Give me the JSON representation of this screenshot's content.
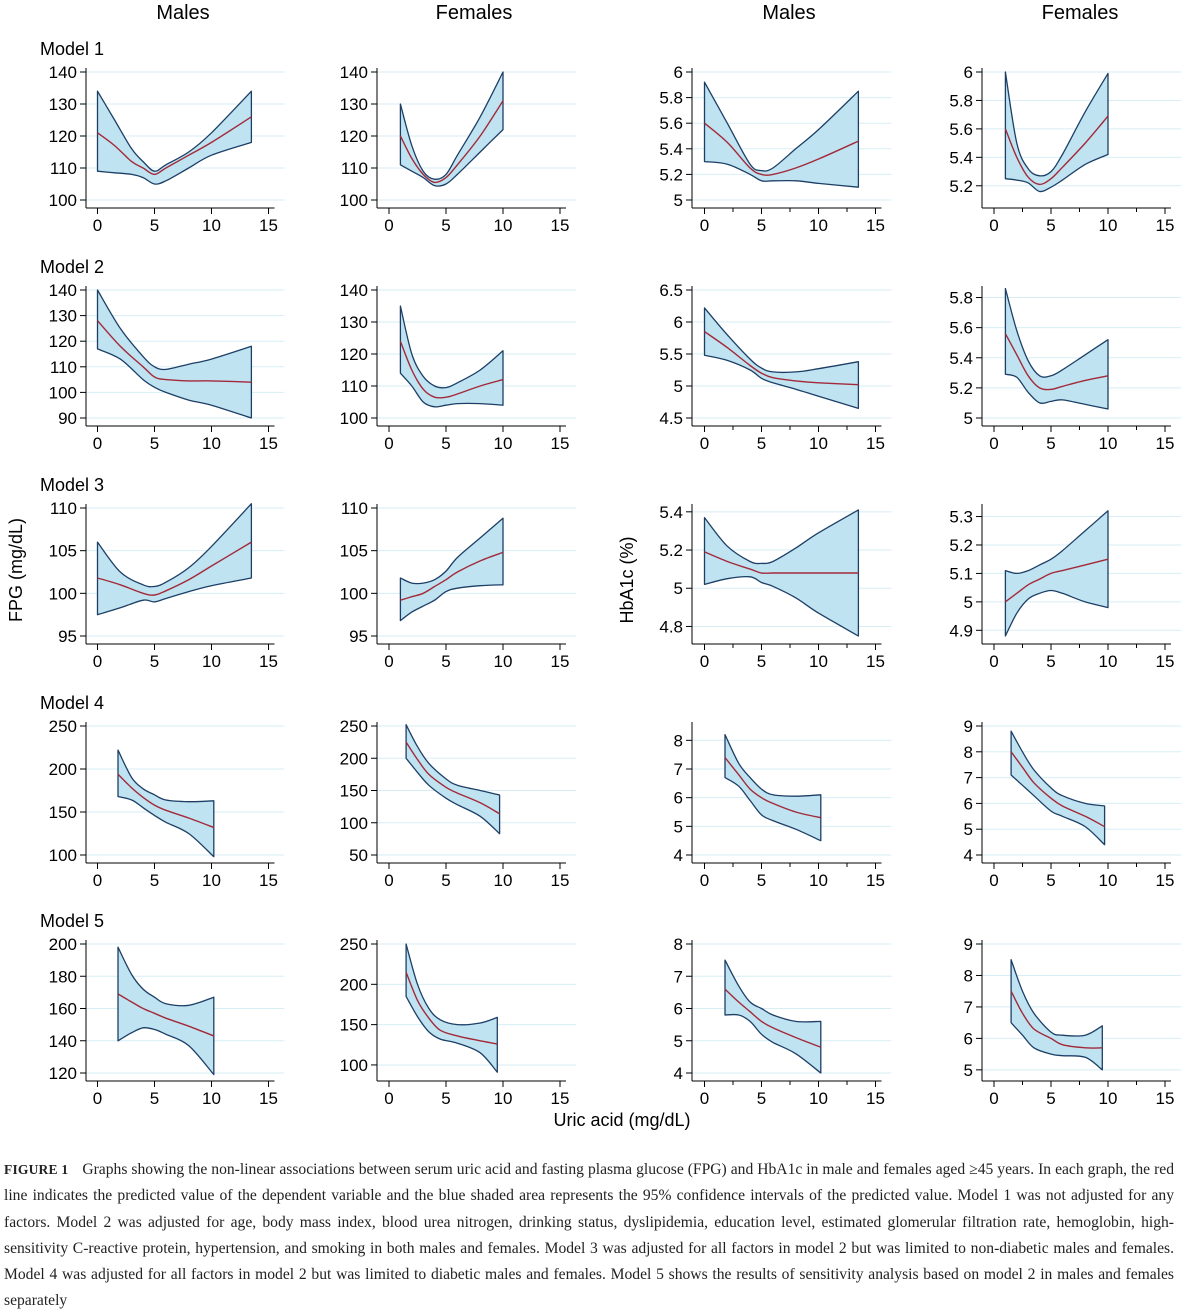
{
  "figure": {
    "column_headers": [
      "Males",
      "Females",
      "Males",
      "Females"
    ],
    "row_labels": [
      "Model 1",
      "Model 2",
      "Model 3",
      "Model 4",
      "Model 5"
    ],
    "y_axis_label_left": "FPG (mg/dL)",
    "y_axis_label_right": "HbA1c (%)",
    "x_axis_label": "Uric acid (mg/dL)",
    "colors": {
      "band_fill": "#bfe3f0",
      "band_edge": "#1d3f66",
      "line": "#a3293a",
      "grid": "#d7eef6",
      "axis": "#000000"
    }
  },
  "caption": {
    "label": "FIGURE 1",
    "text": "Graphs showing the non-linear associations between serum uric acid and fasting plasma glucose (FPG) and HbA1c in male and females aged ≥45 years. In each graph, the red line indicates the predicted value of the dependent variable and the blue shaded area represents the 95% confidence intervals of the predicted value. Model 1 was not adjusted for any factors. Model 2 was adjusted for age, body mass index, blood urea nitrogen, drinking status, dyslipidemia, education level, estimated glomerular filtration rate, hemoglobin, high-sensitivity C-reactive protein, hypertension, and smoking in both males and females. Model 3 was adjusted for all factors in model 2 but was limited to non-diabetic males and females. Model 4 was adjusted for all factors in model 2 but was limited to diabetic males and females. Model 5 shows the results of sensitivity analysis based on model 2 in males and females separately"
  },
  "chart_data": [
    {
      "type": "area",
      "model": "Model 1",
      "sex": "Males",
      "outcome": "FPG (mg/dL)",
      "xlim": [
        0,
        15
      ],
      "ylim": [
        100,
        140
      ],
      "xticks": [
        0,
        5,
        10,
        15
      ],
      "yticks": [
        100,
        110,
        120,
        130,
        140
      ],
      "x": [
        0,
        1.5,
        3,
        4,
        5,
        6,
        8,
        10,
        13.5
      ],
      "pred": [
        121,
        117,
        112,
        110,
        108,
        110,
        114,
        118,
        126
      ],
      "lower": [
        109,
        108.5,
        108,
        107,
        105,
        106,
        110,
        114,
        118
      ],
      "upper": [
        134,
        125,
        116,
        112,
        109,
        111,
        115,
        121,
        134
      ]
    },
    {
      "type": "area",
      "model": "Model 1",
      "sex": "Females",
      "outcome": "FPG (mg/dL)",
      "xlim": [
        0,
        15
      ],
      "ylim": [
        100,
        140
      ],
      "xticks": [
        0,
        5,
        10,
        15
      ],
      "yticks": [
        100,
        110,
        120,
        130,
        140
      ],
      "x": [
        1,
        2,
        3,
        4,
        5,
        6,
        8,
        10
      ],
      "pred": [
        120,
        113,
        108,
        105.5,
        107,
        111,
        120,
        131
      ],
      "lower": [
        111,
        109,
        107,
        104.5,
        105,
        108,
        115,
        122
      ],
      "upper": [
        130,
        117,
        109,
        106.5,
        108,
        114,
        126,
        140
      ]
    },
    {
      "type": "area",
      "model": "Model 1",
      "sex": "Males",
      "outcome": "HbA1c (%)",
      "xlim": [
        0,
        15
      ],
      "ylim": [
        5,
        6
      ],
      "xticks": [
        0,
        5,
        10,
        15
      ],
      "yticks": [
        5,
        5.2,
        5.4,
        5.6,
        5.8,
        6
      ],
      "x": [
        0,
        2,
        4,
        5,
        6,
        8,
        10,
        13.5
      ],
      "pred": [
        5.6,
        5.45,
        5.25,
        5.2,
        5.2,
        5.25,
        5.32,
        5.46
      ],
      "lower": [
        5.3,
        5.28,
        5.2,
        5.15,
        5.15,
        5.15,
        5.13,
        5.1
      ],
      "upper": [
        5.92,
        5.6,
        5.28,
        5.23,
        5.25,
        5.4,
        5.55,
        5.85
      ]
    },
    {
      "type": "area",
      "model": "Model 1",
      "sex": "Females",
      "outcome": "HbA1c (%)",
      "xlim": [
        0,
        15
      ],
      "ylim": [
        5.1,
        6
      ],
      "xticks": [
        0,
        5,
        10,
        15
      ],
      "yticks": [
        5.2,
        5.4,
        5.6,
        5.8,
        6
      ],
      "x": [
        1,
        2,
        3,
        4,
        5,
        6,
        8,
        10
      ],
      "pred": [
        5.6,
        5.4,
        5.26,
        5.21,
        5.25,
        5.33,
        5.5,
        5.69
      ],
      "lower": [
        5.25,
        5.24,
        5.22,
        5.16,
        5.19,
        5.24,
        5.35,
        5.42
      ],
      "upper": [
        6,
        5.5,
        5.32,
        5.27,
        5.3,
        5.42,
        5.72,
        5.99
      ]
    },
    {
      "type": "area",
      "model": "Model 2",
      "sex": "Males",
      "outcome": "FPG (mg/dL)",
      "xlim": [
        0,
        15
      ],
      "ylim": [
        90,
        140
      ],
      "xticks": [
        0,
        5,
        10,
        15
      ],
      "yticks": [
        90,
        100,
        110,
        120,
        130,
        140
      ],
      "x": [
        0,
        2,
        4,
        5,
        6,
        8,
        10,
        13.5
      ],
      "pred": [
        128,
        118,
        110,
        106,
        105,
        104.5,
        104.5,
        104
      ],
      "lower": [
        117,
        113,
        105,
        102,
        100,
        97,
        95,
        90
      ],
      "upper": [
        140,
        125,
        114,
        110,
        109,
        111,
        113,
        118
      ]
    },
    {
      "type": "area",
      "model": "Model 2",
      "sex": "Females",
      "outcome": "FPG (mg/dL)",
      "xlim": [
        0,
        15
      ],
      "ylim": [
        100,
        140
      ],
      "xticks": [
        0,
        5,
        10,
        15
      ],
      "yticks": [
        100,
        110,
        120,
        130,
        140
      ],
      "x": [
        1,
        2,
        3,
        4,
        5,
        6,
        8,
        10
      ],
      "pred": [
        124,
        115,
        109,
        106.5,
        106.5,
        107.5,
        110,
        112
      ],
      "lower": [
        114,
        110,
        105,
        103.5,
        104,
        104.5,
        104.5,
        104
      ],
      "upper": [
        135,
        120,
        113,
        110,
        109.5,
        111,
        115,
        121
      ]
    },
    {
      "type": "area",
      "model": "Model 2",
      "sex": "Males",
      "outcome": "HbA1c (%)",
      "xlim": [
        0,
        15
      ],
      "ylim": [
        4.5,
        6.5
      ],
      "xticks": [
        0,
        5,
        10,
        15
      ],
      "yticks": [
        4.5,
        5,
        5.5,
        6,
        6.5
      ],
      "x": [
        0,
        2,
        4,
        5,
        6,
        8,
        10,
        13.5
      ],
      "pred": [
        5.85,
        5.6,
        5.32,
        5.2,
        5.13,
        5.08,
        5.05,
        5.02
      ],
      "lower": [
        5.48,
        5.4,
        5.25,
        5.12,
        5.05,
        4.95,
        4.84,
        4.65
      ],
      "upper": [
        6.22,
        5.8,
        5.42,
        5.28,
        5.22,
        5.22,
        5.27,
        5.38
      ]
    },
    {
      "type": "area",
      "model": "Model 2",
      "sex": "Females",
      "outcome": "HbA1c (%)",
      "xlim": [
        0,
        15
      ],
      "ylim": [
        5,
        5.85
      ],
      "xticks": [
        0,
        5,
        10,
        15
      ],
      "yticks": [
        5,
        5.2,
        5.4,
        5.6,
        5.8
      ],
      "x": [
        1,
        2,
        3,
        4,
        5,
        6,
        8,
        10
      ],
      "pred": [
        5.56,
        5.42,
        5.28,
        5.2,
        5.19,
        5.21,
        5.25,
        5.28
      ],
      "lower": [
        5.29,
        5.27,
        5.17,
        5.1,
        5.11,
        5.12,
        5.09,
        5.06
      ],
      "upper": [
        5.86,
        5.58,
        5.38,
        5.28,
        5.28,
        5.32,
        5.42,
        5.52
      ]
    },
    {
      "type": "area",
      "model": "Model 3",
      "sex": "Males",
      "outcome": "FPG (mg/dL)",
      "xlim": [
        0,
        15
      ],
      "ylim": [
        95,
        110
      ],
      "xticks": [
        0,
        5,
        10,
        15
      ],
      "yticks": [
        95,
        100,
        105,
        110
      ],
      "x": [
        0,
        2,
        4,
        5,
        6,
        8,
        10,
        13.5
      ],
      "pred": [
        101.8,
        101,
        100,
        99.8,
        100.3,
        101.6,
        103.2,
        106
      ],
      "lower": [
        97.5,
        98.3,
        99.2,
        99,
        99.4,
        100.2,
        100.9,
        101.8
      ],
      "upper": [
        106,
        102.5,
        101,
        100.8,
        101.3,
        103,
        105.5,
        110.5
      ]
    },
    {
      "type": "area",
      "model": "Model 3",
      "sex": "Females",
      "outcome": "FPG (mg/dL)",
      "xlim": [
        0,
        15
      ],
      "ylim": [
        95,
        110
      ],
      "xticks": [
        0,
        5,
        10,
        15
      ],
      "yticks": [
        95,
        100,
        105,
        110
      ],
      "x": [
        1,
        2,
        3,
        4,
        5,
        6,
        8,
        10
      ],
      "pred": [
        99.2,
        99.6,
        100,
        100.8,
        101.6,
        102.5,
        103.8,
        104.8
      ],
      "lower": [
        96.8,
        97.8,
        98.5,
        99.2,
        100.2,
        100.6,
        100.9,
        101
      ],
      "upper": [
        101.8,
        101.2,
        101.2,
        101.6,
        102.6,
        104.2,
        106.5,
        108.8
      ]
    },
    {
      "type": "area",
      "model": "Model 3",
      "sex": "Males",
      "outcome": "HbA1c (%)",
      "xlim": [
        0,
        15
      ],
      "ylim": [
        4.75,
        5.42
      ],
      "xticks": [
        0,
        5,
        10,
        15
      ],
      "yticks": [
        4.8,
        5,
        5.2,
        5.4
      ],
      "x": [
        0,
        2,
        4,
        5,
        6,
        8,
        10,
        13.5
      ],
      "pred": [
        5.19,
        5.14,
        5.1,
        5.08,
        5.08,
        5.08,
        5.08,
        5.08
      ],
      "lower": [
        5.02,
        5.05,
        5.06,
        5.03,
        5.01,
        4.95,
        4.87,
        4.75
      ],
      "upper": [
        5.37,
        5.22,
        5.14,
        5.13,
        5.14,
        5.21,
        5.29,
        5.41
      ]
    },
    {
      "type": "area",
      "model": "Model 3",
      "sex": "Females",
      "outcome": "HbA1c (%)",
      "xlim": [
        0,
        15
      ],
      "ylim": [
        4.88,
        5.33
      ],
      "xticks": [
        0,
        5,
        10,
        15
      ],
      "yticks": [
        4.9,
        5,
        5.1,
        5.2,
        5.3
      ],
      "x": [
        1,
        2,
        3,
        4,
        5,
        6,
        8,
        10
      ],
      "pred": [
        5,
        5.03,
        5.06,
        5.08,
        5.1,
        5.11,
        5.13,
        5.15
      ],
      "lower": [
        4.88,
        4.96,
        5.01,
        5.03,
        5.04,
        5.03,
        5,
        4.98
      ],
      "upper": [
        5.11,
        5.1,
        5.11,
        5.13,
        5.15,
        5.18,
        5.25,
        5.32
      ]
    },
    {
      "type": "area",
      "model": "Model 4",
      "sex": "Males",
      "outcome": "FPG (mg/dL)",
      "xlim": [
        0,
        15
      ],
      "ylim": [
        100,
        250
      ],
      "xticks": [
        0,
        5,
        10,
        15
      ],
      "yticks": [
        100,
        150,
        200,
        250
      ],
      "x": [
        1.8,
        3,
        4,
        5,
        6,
        8,
        10.2
      ],
      "pred": [
        194,
        178,
        167,
        158,
        152,
        143,
        132
      ],
      "lower": [
        168,
        164,
        155,
        146,
        138,
        125,
        98
      ],
      "upper": [
        222,
        190,
        177,
        170,
        164,
        162,
        163
      ]
    },
    {
      "type": "area",
      "model": "Model 4",
      "sex": "Females",
      "outcome": "FPG (mg/dL)",
      "xlim": [
        0,
        15
      ],
      "ylim": [
        50,
        250
      ],
      "xticks": [
        0,
        5,
        10,
        15
      ],
      "yticks": [
        50,
        100,
        150,
        200,
        250
      ],
      "x": [
        1.5,
        2.5,
        3.5,
        5,
        6,
        8,
        9.7
      ],
      "pred": [
        225,
        198,
        175,
        155,
        146,
        131,
        114
      ],
      "lower": [
        200,
        178,
        158,
        138,
        128,
        110,
        83
      ],
      "upper": [
        252,
        218,
        192,
        168,
        158,
        150,
        143
      ]
    },
    {
      "type": "area",
      "model": "Model 4",
      "sex": "Males",
      "outcome": "HbA1c (%)",
      "xlim": [
        0,
        15
      ],
      "ylim": [
        4,
        8.5
      ],
      "xticks": [
        0,
        5,
        10,
        15
      ],
      "yticks": [
        4,
        5,
        6,
        7,
        8
      ],
      "x": [
        1.8,
        3,
        4,
        5,
        6,
        8,
        10.2
      ],
      "pred": [
        7.4,
        6.8,
        6.3,
        6,
        5.8,
        5.5,
        5.3
      ],
      "lower": [
        6.7,
        6.4,
        5.9,
        5.4,
        5.2,
        4.9,
        4.5
      ],
      "upper": [
        8.2,
        7.2,
        6.7,
        6.3,
        6.1,
        6.05,
        6.1
      ]
    },
    {
      "type": "area",
      "model": "Model 4",
      "sex": "Females",
      "outcome": "HbA1c (%)",
      "xlim": [
        0,
        15
      ],
      "ylim": [
        4,
        9
      ],
      "xticks": [
        0,
        5,
        10,
        15
      ],
      "yticks": [
        4,
        5,
        6,
        7,
        8,
        9
      ],
      "x": [
        1.5,
        2.5,
        3.5,
        5,
        6,
        8,
        9.7
      ],
      "pred": [
        8,
        7.4,
        6.8,
        6.2,
        5.9,
        5.5,
        5.1
      ],
      "lower": [
        7.1,
        6.7,
        6.3,
        5.7,
        5.5,
        5.1,
        4.4
      ],
      "upper": [
        8.8,
        8,
        7.3,
        6.6,
        6.3,
        6,
        5.9
      ]
    },
    {
      "type": "area",
      "model": "Model 5",
      "sex": "Males",
      "outcome": "FPG (mg/dL)",
      "xlim": [
        0,
        15
      ],
      "ylim": [
        120,
        200
      ],
      "xticks": [
        0,
        5,
        10,
        15
      ],
      "yticks": [
        120,
        140,
        160,
        180,
        200
      ],
      "x": [
        1.8,
        3,
        4,
        5,
        6,
        8,
        10.2
      ],
      "pred": [
        169,
        164,
        160,
        157,
        154,
        149,
        143
      ],
      "lower": [
        140,
        145,
        148,
        147,
        144,
        137,
        119
      ],
      "upper": [
        198,
        181,
        172,
        167,
        163,
        162,
        167
      ]
    },
    {
      "type": "area",
      "model": "Model 5",
      "sex": "Females",
      "outcome": "FPG (mg/dL)",
      "xlim": [
        0,
        15
      ],
      "ylim": [
        90,
        250
      ],
      "xticks": [
        0,
        5,
        10,
        15
      ],
      "yticks": [
        100,
        150,
        200,
        250
      ],
      "x": [
        1.5,
        2.5,
        3.5,
        4.5,
        6,
        8,
        9.5
      ],
      "pred": [
        215,
        180,
        158,
        143,
        136,
        130,
        126
      ],
      "lower": [
        185,
        160,
        141,
        132,
        127,
        115,
        91
      ],
      "upper": [
        250,
        200,
        170,
        156,
        150,
        152,
        159
      ]
    },
    {
      "type": "area",
      "model": "Model 5",
      "sex": "Males",
      "outcome": "HbA1c (%)",
      "xlim": [
        0,
        15
      ],
      "ylim": [
        4,
        8
      ],
      "xticks": [
        0,
        5,
        10,
        15
      ],
      "yticks": [
        4,
        5,
        6,
        7,
        8
      ],
      "x": [
        1.8,
        3,
        4,
        5,
        6,
        8,
        10.2
      ],
      "pred": [
        6.6,
        6.2,
        5.9,
        5.6,
        5.4,
        5.1,
        4.8
      ],
      "lower": [
        5.8,
        5.8,
        5.6,
        5.2,
        4.95,
        4.6,
        4
      ],
      "upper": [
        7.5,
        6.7,
        6.2,
        6,
        5.8,
        5.6,
        5.6
      ]
    },
    {
      "type": "area",
      "model": "Model 5",
      "sex": "Females",
      "outcome": "HbA1c (%)",
      "xlim": [
        0,
        15
      ],
      "ylim": [
        4.9,
        9
      ],
      "xticks": [
        0,
        5,
        10,
        15
      ],
      "yticks": [
        5,
        6,
        7,
        8,
        9
      ],
      "x": [
        1.5,
        2.5,
        3.5,
        5,
        6,
        8,
        9.5
      ],
      "pred": [
        7.5,
        6.8,
        6.3,
        6,
        5.8,
        5.7,
        5.7
      ],
      "lower": [
        6.5,
        6.1,
        5.7,
        5.5,
        5.45,
        5.4,
        5
      ],
      "upper": [
        8.5,
        7.5,
        6.8,
        6.2,
        6.1,
        6.1,
        6.4
      ]
    }
  ]
}
